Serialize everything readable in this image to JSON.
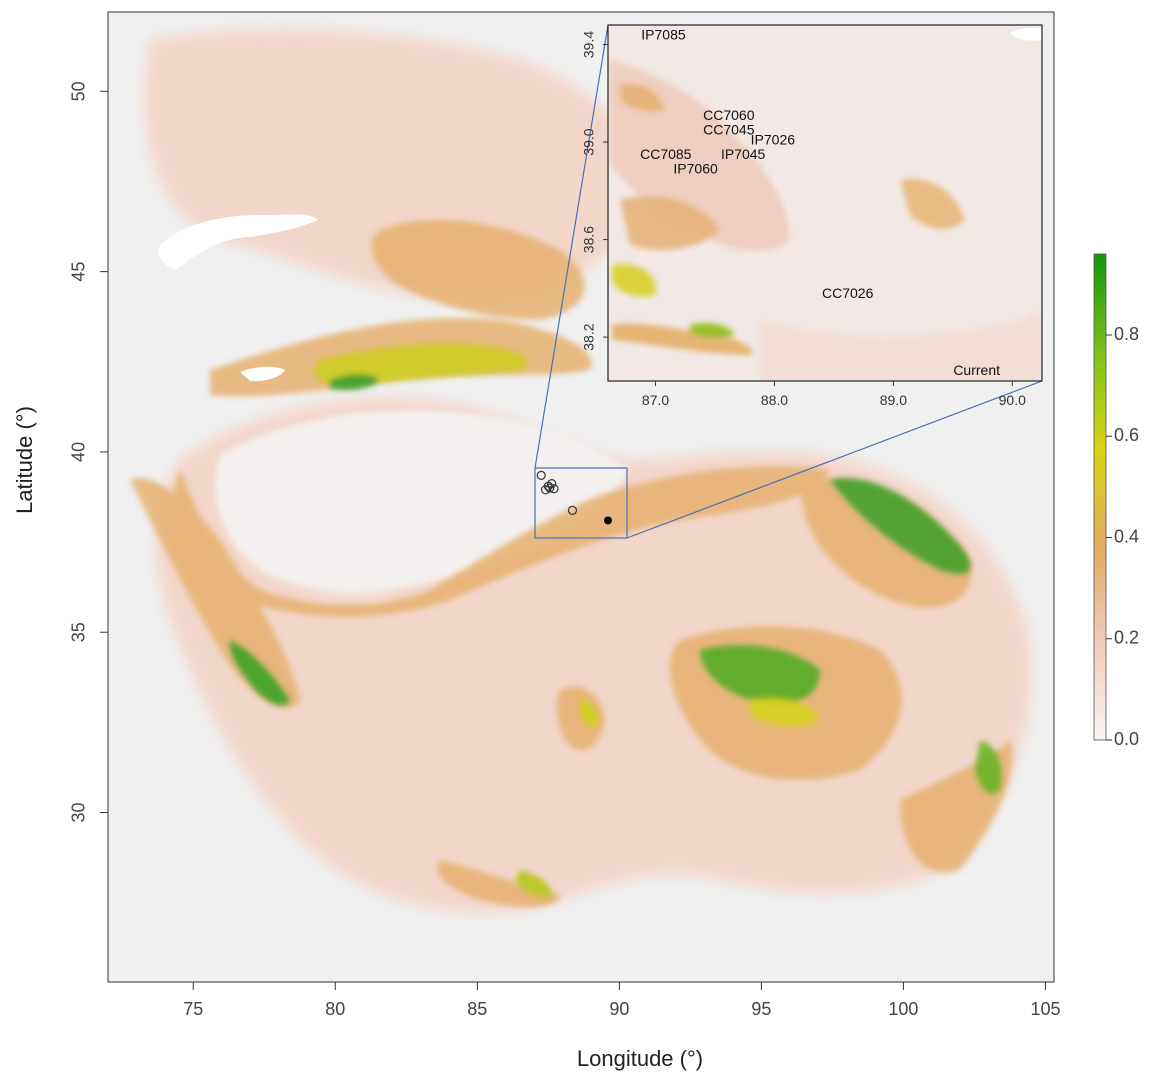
{
  "map": {
    "x_axis": {
      "title": "Longitude (°)",
      "ticks": [
        "75",
        "80",
        "85",
        "90",
        "95",
        "100",
        "105"
      ],
      "range": [
        72,
        105.3
      ]
    },
    "y_axis": {
      "title": "Latitude (°)",
      "ticks": [
        "30",
        "35",
        "40",
        "45",
        "50"
      ],
      "range": [
        25.3,
        52.2
      ]
    },
    "colors": {
      "background": "#f0f0f0",
      "low": "#f3d4ca",
      "mid": "#e3ad6c",
      "high_yellow": "#d6d417",
      "high_green": "#2aa12a"
    }
  },
  "inset": {
    "x_ticks": [
      "87.0",
      "88.0",
      "89.0",
      "90.0"
    ],
    "y_ticks": [
      "38.2",
      "38.6",
      "39.0",
      "39.4"
    ],
    "x_range": [
      86.6,
      90.25
    ],
    "y_range": [
      38.02,
      39.48
    ],
    "corner_label": "Current",
    "labels": [
      {
        "text": "IP7085",
        "lon": 86.88,
        "lat": 39.42
      },
      {
        "text": "CC7060",
        "lon": 87.4,
        "lat": 39.09
      },
      {
        "text": "CC7045",
        "lon": 87.4,
        "lat": 39.03
      },
      {
        "text": "IP7026",
        "lon": 87.8,
        "lat": 38.99
      },
      {
        "text": "CC7085",
        "lon": 86.87,
        "lat": 38.93
      },
      {
        "text": "IP7045",
        "lon": 87.55,
        "lat": 38.93
      },
      {
        "text": "IP7060",
        "lon": 87.15,
        "lat": 38.87
      },
      {
        "text": "CC7026",
        "lon": 88.4,
        "lat": 38.36
      }
    ],
    "box": {
      "lon_min": 87.0,
      "lon_max": 90.2,
      "lat_min": 37.8,
      "lat_max": 39.7
    }
  },
  "points": {
    "open": [
      {
        "lon": 87.25,
        "lat": 39.35
      },
      {
        "lon": 87.4,
        "lat": 38.95
      },
      {
        "lon": 87.5,
        "lat": 39.05
      },
      {
        "lon": 87.55,
        "lat": 39.0
      },
      {
        "lon": 87.7,
        "lat": 38.98
      },
      {
        "lon": 87.62,
        "lat": 39.12
      },
      {
        "lon": 88.35,
        "lat": 38.38
      }
    ],
    "filled": [
      {
        "lon": 89.6,
        "lat": 38.1
      }
    ]
  },
  "legend": {
    "ticks": [
      "0.0",
      "0.2",
      "0.4",
      "0.6",
      "0.8"
    ],
    "tick_values": [
      0.0,
      0.2,
      0.4,
      0.6,
      0.8
    ],
    "range": [
      0,
      0.96
    ]
  }
}
